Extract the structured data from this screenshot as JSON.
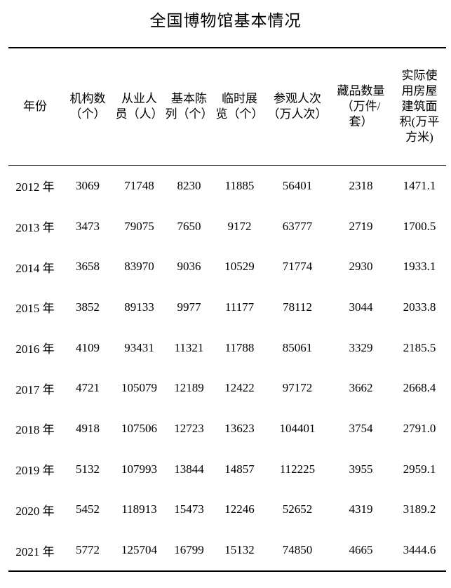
{
  "page": {
    "title": "全国博物馆基本情况"
  },
  "colors": {
    "text": "#000000",
    "background": "#ffffff",
    "rule": "#000000"
  },
  "table": {
    "headers": [
      "年份",
      "机构数\n（个）",
      "从业人\n员（人）",
      "基本陈\n列（个）",
      "临时展\n览（个）",
      "参观人次\n（万人次）",
      "藏品数量\n（万件/\n套）",
      "实际使\n用房屋\n建筑面\n积(万平\n方米)"
    ],
    "rows": [
      [
        "2012 年",
        "3069",
        "71748",
        "8230",
        "11885",
        "56401",
        "2318",
        "1471.1"
      ],
      [
        "2013 年",
        "3473",
        "79075",
        "7650",
        "9172",
        "63777",
        "2719",
        "1700.5"
      ],
      [
        "2014 年",
        "3658",
        "83970",
        "9036",
        "10529",
        "71774",
        "2930",
        "1933.1"
      ],
      [
        "2015 年",
        "3852",
        "89133",
        "9977",
        "11177",
        "78112",
        "3044",
        "2033.8"
      ],
      [
        "2016 年",
        "4109",
        "93431",
        "11321",
        "11788",
        "85061",
        "3329",
        "2185.5"
      ],
      [
        "2017 年",
        "4721",
        "105079",
        "12189",
        "12422",
        "97172",
        "3662",
        "2668.4"
      ],
      [
        "2018 年",
        "4918",
        "107506",
        "12723",
        "13623",
        "104401",
        "3754",
        "2791.0"
      ],
      [
        "2019 年",
        "5132",
        "107993",
        "13844",
        "14857",
        "112225",
        "3955",
        "2959.1"
      ],
      [
        "2020 年",
        "5452",
        "118913",
        "15473",
        "12246",
        "52652",
        "4319",
        "3189.2"
      ],
      [
        "2021 年",
        "5772",
        "125704",
        "16799",
        "15132",
        "74850",
        "4665",
        "3444.6"
      ]
    ]
  }
}
